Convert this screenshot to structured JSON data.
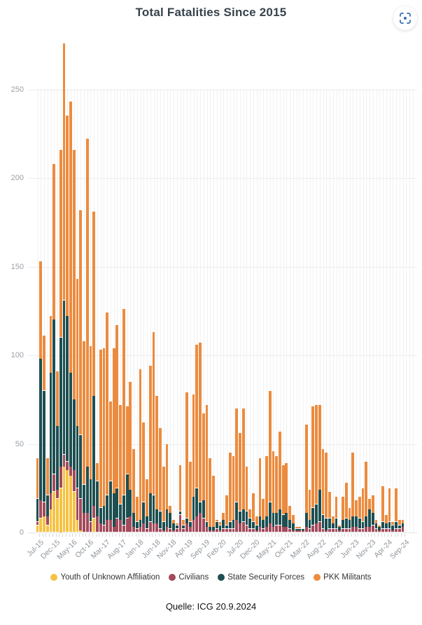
{
  "header": {
    "title": "Total Fatalities Since 2015",
    "expand_button": {
      "icon": "scan-icon",
      "color": "#2e6db4"
    }
  },
  "footer": {
    "source": "Quelle: ICG 20.9.2024"
  },
  "colors": {
    "background": "#ffffff",
    "title_text": "#36424c",
    "axis_text": "#9aa0a6",
    "gridline": "#ececec",
    "youth": "#f5c242",
    "civilians": "#a34a5b",
    "security_forces": "#1d4f51",
    "pkk": "#ec8b3e"
  },
  "chart_data": {
    "type": "bar",
    "stacked": true,
    "title": "Total Fatalities Since 2015",
    "xlabel": "",
    "ylabel": "",
    "ylim": [
      0,
      280
    ],
    "yticks": [
      0,
      50,
      100,
      150,
      200,
      250
    ],
    "grid": true,
    "legend_position": "bottom",
    "x_tick_label_every": 5,
    "categories": [
      "Jul-15",
      "Aug-15",
      "Sep-15",
      "Oct-15",
      "Nov-15",
      "Dec-15",
      "Jan-16",
      "Feb-16",
      "Mar-16",
      "Apr-16",
      "May-16",
      "Jun-16",
      "Jul-16",
      "Aug-16",
      "Sep-16",
      "Oct-16",
      "Nov-16",
      "Dec-16",
      "Jan-17",
      "Feb-17",
      "Mar-17",
      "Apr-17",
      "May-17",
      "Jun-17",
      "Jul-17",
      "Aug-17",
      "Sep-17",
      "Oct-17",
      "Nov-17",
      "Dec-17",
      "Jan-18",
      "Feb-18",
      "Mar-18",
      "Apr-18",
      "May-18",
      "Jun-18",
      "Jul-18",
      "Aug-18",
      "Sep-18",
      "Oct-18",
      "Nov-18",
      "Dec-18",
      "Jan-19",
      "Feb-19",
      "Mar-19",
      "Apr-19",
      "May-19",
      "Jun-19",
      "Jul-19",
      "Aug-19",
      "Sep-19",
      "Oct-19",
      "Nov-19",
      "Dec-19",
      "Jan-20",
      "Feb-20",
      "Mar-20",
      "Apr-20",
      "May-20",
      "Jun-20",
      "Jul-20",
      "Aug-20",
      "Sep-20",
      "Oct-20",
      "Nov-20",
      "Dec-20",
      "Jan-21",
      "Feb-21",
      "Mar-21",
      "Apr-21",
      "May-21",
      "Jun-21",
      "Jul-21",
      "Aug-21",
      "Sep-21",
      "Oct-21",
      "Nov-21",
      "Dec-21",
      "Jan-22",
      "Feb-22",
      "Mar-22",
      "Apr-22",
      "May-22",
      "Jun-22",
      "Jul-22",
      "Aug-22",
      "Sep-22",
      "Oct-22",
      "Nov-22",
      "Dec-22",
      "Jan-23",
      "Feb-23",
      "Mar-23",
      "Apr-23",
      "May-23",
      "Jun-23",
      "Jul-23",
      "Aug-23",
      "Sep-23",
      "Oct-23",
      "Nov-23",
      "Dec-23",
      "Jan-24",
      "Feb-24",
      "Mar-24",
      "Apr-24",
      "May-24",
      "Jun-24",
      "Jul-24",
      "Aug-24",
      "Sep-24"
    ],
    "series": [
      {
        "name": "Youth of Unknown Affiliation",
        "color": "#f5c242",
        "values": [
          4,
          8,
          9,
          4,
          13,
          23,
          19,
          25,
          37,
          35,
          32,
          23,
          7,
          1,
          0,
          0,
          0,
          8,
          0,
          0,
          0,
          0,
          0,
          0,
          0,
          0,
          0,
          0,
          0,
          0,
          0,
          0,
          0,
          0,
          0,
          0,
          0,
          0,
          0,
          0,
          0,
          0,
          0,
          0,
          0,
          0,
          0,
          0,
          0,
          0,
          0,
          0,
          0,
          0,
          0,
          0,
          0,
          0,
          0,
          0,
          0,
          0,
          0,
          0,
          0,
          0,
          0,
          0,
          0,
          0,
          0,
          0,
          0,
          0,
          0,
          0,
          0,
          0,
          0,
          0,
          0,
          0,
          0,
          0,
          0,
          0,
          0,
          0,
          0,
          0,
          0,
          0,
          0,
          0,
          0,
          0,
          0,
          0,
          0,
          0,
          0,
          0,
          0,
          0,
          0,
          0,
          0,
          0,
          0,
          0,
          0
        ]
      },
      {
        "name": "Civilians",
        "color": "#a34a5b",
        "values": [
          2,
          10,
          8,
          5,
          9,
          10,
          5,
          12,
          7,
          5,
          5,
          12,
          18,
          18,
          11,
          11,
          6,
          7,
          9,
          5,
          4,
          7,
          7,
          3,
          8,
          7,
          4,
          8,
          9,
          3,
          2,
          3,
          5,
          2,
          6,
          5,
          5,
          2,
          1,
          3,
          2,
          1,
          2,
          10,
          2,
          5,
          3,
          7,
          9,
          11,
          8,
          3,
          1,
          1,
          2,
          1,
          2,
          2,
          2,
          2,
          7,
          5,
          6,
          4,
          2,
          2,
          1,
          3,
          2,
          3,
          5,
          3,
          4,
          4,
          3,
          3,
          2,
          1,
          1,
          1,
          1,
          3,
          2,
          4,
          5,
          6,
          2,
          1,
          2,
          2,
          2,
          1,
          2,
          2,
          2,
          3,
          3,
          2,
          2,
          3,
          3,
          4,
          2,
          1,
          2,
          2,
          2,
          1,
          2,
          2,
          3
        ]
      },
      {
        "name": "State Security Forces",
        "color": "#1d4f51",
        "values": [
          13,
          80,
          63,
          12,
          68,
          87,
          36,
          73,
          87,
          82,
          53,
          40,
          35,
          36,
          16,
          26,
          24,
          62,
          20,
          9,
          11,
          14,
          22,
          19,
          17,
          9,
          17,
          25,
          15,
          8,
          4,
          4,
          12,
          7,
          16,
          16,
          8,
          10,
          5,
          10,
          9,
          4,
          2,
          2,
          2,
          3,
          3,
          13,
          16,
          6,
          10,
          3,
          2,
          2,
          4,
          3,
          5,
          2,
          4,
          5,
          10,
          7,
          7,
          8,
          6,
          4,
          3,
          6,
          5,
          6,
          12,
          8,
          7,
          9,
          7,
          8,
          5,
          4,
          1,
          1,
          1,
          8,
          5,
          10,
          11,
          18,
          8,
          7,
          6,
          3,
          6,
          2,
          5,
          6,
          5,
          6,
          6,
          6,
          4,
          6,
          10,
          7,
          3,
          2,
          4,
          3,
          4,
          3,
          4,
          2,
          2
        ]
      },
      {
        "name": "PKK Militants",
        "color": "#ec8b3e",
        "values": [
          23,
          55,
          31,
          21,
          32,
          88,
          31,
          106,
          145,
          113,
          153,
          141,
          83,
          127,
          81,
          185,
          75,
          104,
          10,
          89,
          89,
          103,
          45,
          82,
          92,
          56,
          105,
          38,
          61,
          36,
          14,
          85,
          45,
          21,
          72,
          92,
          64,
          47,
          31,
          37,
          4,
          2,
          1,
          26,
          3,
          71,
          34,
          58,
          81,
          90,
          49,
          66,
          39,
          29,
          1,
          2,
          4,
          17,
          39,
          36,
          53,
          44,
          57,
          25,
          5,
          16,
          5,
          33,
          12,
          34,
          63,
          35,
          32,
          44,
          28,
          28,
          8,
          5,
          1,
          1,
          0,
          50,
          17,
          57,
          56,
          48,
          37,
          37,
          15,
          4,
          12,
          1,
          13,
          20,
          7,
          36,
          9,
          12,
          19,
          31,
          6,
          10,
          2,
          1,
          20,
          5,
          19,
          2,
          19,
          3,
          2
        ]
      }
    ]
  }
}
